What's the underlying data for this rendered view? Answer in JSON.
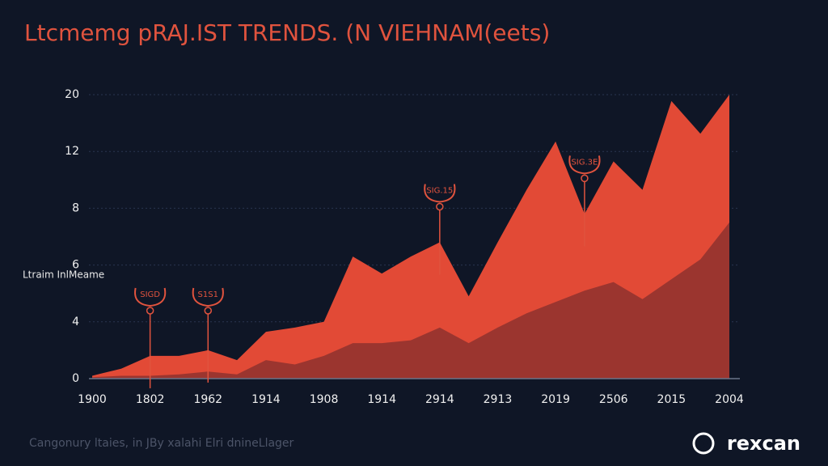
{
  "chart_data": {
    "type": "area",
    "title": "Ltcmemg pRAJ.IST TRENDS. (N VIEHNAM(eets)",
    "y_label": "Ltraim InlMeame",
    "categories": [
      "1900",
      null,
      "1802",
      null,
      "1962",
      null,
      "1914",
      null,
      "1908",
      null,
      "1914",
      null,
      "2914",
      null,
      "2913",
      null,
      "2019",
      null,
      "2506",
      null,
      "2015",
      null,
      "2004"
    ],
    "series": [
      {
        "color": "#e24a36",
        "values": [
          0.2,
          0.7,
          1.6,
          1.6,
          2.0,
          1.3,
          3.3,
          3.6,
          4.0,
          6.3,
          5.7,
          6.3,
          6.8,
          4.9,
          6.8,
          9.3,
          13.4,
          7.8,
          11.3,
          9.3,
          19.1,
          14.5,
          20
        ]
      },
      {
        "color": "#93332f",
        "values": [
          0.1,
          0.2,
          0.2,
          0.3,
          0.5,
          0.3,
          1.3,
          1.0,
          1.6,
          2.5,
          2.5,
          2.7,
          3.6,
          2.5,
          3.6,
          4.3,
          4.7,
          5.1,
          5.4,
          4.8,
          5.5,
          6.2,
          7.5
        ]
      }
    ],
    "ylim": [
      0,
      20
    ],
    "yticks": [
      0,
      4,
      6,
      8,
      12,
      20
    ],
    "grid": true,
    "annotations": [
      {
        "index": 2,
        "text": "SIGD"
      },
      {
        "index": 4,
        "text": "S1S1"
      },
      {
        "index": 12,
        "text": "SIG.15"
      },
      {
        "index": 17,
        "text": "SIG.3E"
      }
    ],
    "footer": "Cangonury ltaies, in JBy xalahi Elri dnineLlager",
    "brand": "rexcan"
  }
}
